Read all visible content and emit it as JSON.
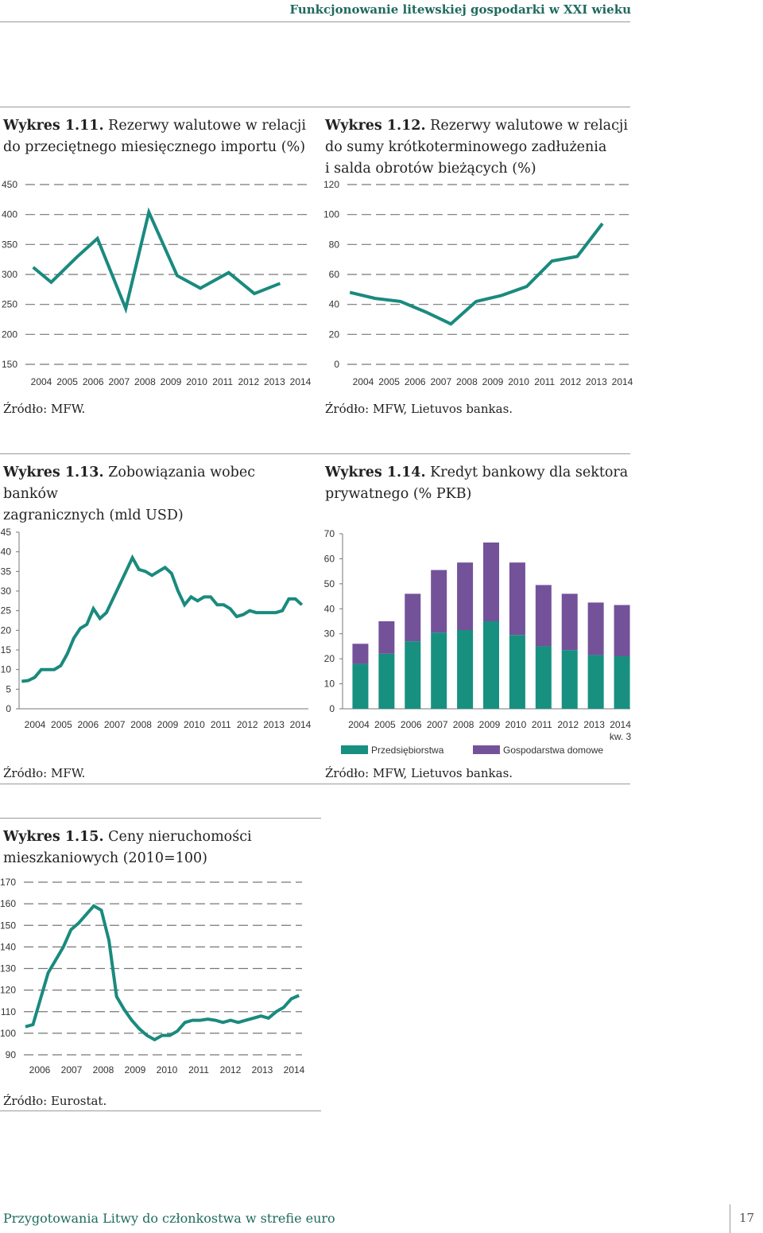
{
  "header": {
    "title": "Funkcjonowanie litewskiej gospodarki w XXI wieku"
  },
  "footer": {
    "left": "Przygotowania Litwy do członkostwa w strefie euro",
    "page_number": "17"
  },
  "charts": [
    {
      "num": "Wykres 1.11.",
      "title": "Rezerwy walutowe w relacji do przeciętnego miesięcznego importu (%)",
      "title_lines": [
        "Rezerwy walutowe w relacji",
        "do przeciętnego miesięcznego importu (%)"
      ],
      "source": "Źródło: MFW."
    },
    {
      "num": "Wykres 1.12.",
      "title": "Rezerwy walutowe w relacji do sumy krótkoterminowego zadłużenia i salda obrotów bieżących (%)",
      "title_lines": [
        "Rezerwy walutowe w relacji",
        "do sumy krótkoterminowego zadłużenia",
        "i salda obrotów bieżących (%)"
      ],
      "source": "Źródło: MFW, Lietuvos bankas."
    },
    {
      "num": "Wykres 1.13.",
      "title": "Zobowiązania wobec banków zagranicznych (mld USD)",
      "title_lines": [
        "Zobowiązania wobec banków",
        "zagranicznych (mld USD)"
      ],
      "source": "Źródło: MFW."
    },
    {
      "num": "Wykres 1.14.",
      "title": "Kredyt bankowy dla sektora prywatnego (% PKB)",
      "title_lines": [
        "Kredyt bankowy dla sektora",
        "prywatnego (% PKB)"
      ],
      "source": "Źródło: MFW, Lietuvos bankas."
    },
    {
      "num": "Wykres 1.15.",
      "title": "Ceny nieruchomości mieszkaniowych (2010=100)",
      "title_lines": [
        "Ceny nieruchomości",
        "mieszkaniowych (2010=100)"
      ],
      "source": "Źródło: Eurostat."
    }
  ],
  "chart_data": [
    {
      "type": "line",
      "title": "Rezerwy walutowe w relacji do przeciętnego miesięcznego importu (%)",
      "x": [
        2003.3,
        2004.0,
        2005.0,
        2005.8,
        2006.9,
        2007.8,
        2008.9,
        2009.8,
        2010.9,
        2011.9,
        2012.9
      ],
      "values": [
        312,
        287,
        329,
        360,
        243,
        404,
        298,
        277,
        303,
        268,
        285
      ],
      "ylim": [
        150,
        450
      ],
      "yticks": [
        150,
        200,
        250,
        300,
        350,
        400,
        450
      ],
      "xticks": [
        "2004",
        "2005",
        "2006",
        "2007",
        "2008",
        "2009",
        "2010",
        "2011",
        "2012",
        "2013",
        "2014"
      ],
      "line_color": "#1a8a7e"
    },
    {
      "type": "line",
      "title": "Rezerwy walutowe w relacji do sumy krótkoterminowego zadłużenia i salda obrotów bieżących (%)",
      "x": [
        2003.0,
        2004.0,
        2005.0,
        2006.0,
        2007.0,
        2008.0,
        2009.0,
        2010.0,
        2011.0,
        2012.0,
        2013.0
      ],
      "values": [
        48,
        44,
        42,
        35,
        27,
        42,
        46,
        52,
        69,
        72,
        94
      ],
      "ylim": [
        0,
        120
      ],
      "yticks": [
        0,
        20,
        40,
        60,
        80,
        100,
        120
      ],
      "xticks": [
        "2004",
        "2005",
        "2006",
        "2007",
        "2008",
        "2009",
        "2010",
        "2011",
        "2012",
        "2013",
        "2014"
      ],
      "line_color": "#1a8a7e"
    },
    {
      "type": "line",
      "title": "Zobowiązania wobec banków zagranicznych (mld USD)",
      "x": [
        2003.0,
        2003.25,
        2003.5,
        2003.75,
        2004.0,
        2004.25,
        2004.5,
        2004.75,
        2005.0,
        2005.25,
        2005.5,
        2005.75,
        2006.0,
        2006.25,
        2006.5,
        2006.75,
        2007.0,
        2007.25,
        2007.5,
        2007.75,
        2008.0,
        2008.25,
        2008.5,
        2008.75,
        2009.0,
        2009.25,
        2009.5,
        2009.75,
        2010.0,
        2010.25,
        2010.5,
        2010.75,
        2011.0,
        2011.25,
        2011.5,
        2011.75,
        2012.0,
        2012.25,
        2012.5,
        2012.75,
        2013.0,
        2013.25,
        2013.5,
        2013.75
      ],
      "values": [
        7,
        7.2,
        8,
        10,
        10,
        10,
        11,
        14,
        18,
        20.5,
        21.5,
        25.5,
        23,
        24.5,
        28,
        31.5,
        35,
        38.5,
        35.5,
        35,
        34,
        35,
        36,
        34.5,
        30,
        26.5,
        28.5,
        27.5,
        28.5,
        28.5,
        26.5,
        26.5,
        25.5,
        23.5,
        24,
        25,
        24.5,
        24.5,
        24.5,
        24.5,
        25,
        28,
        28,
        26.5
      ],
      "ylim": [
        0,
        45
      ],
      "yticks": [
        0,
        5,
        10,
        15,
        20,
        25,
        30,
        35,
        40,
        45
      ],
      "xticks": [
        "2004",
        "2005",
        "2006",
        "2007",
        "2008",
        "2009",
        "2010",
        "2011",
        "2012",
        "2013",
        "2014"
      ],
      "line_color": "#1a8a7e"
    },
    {
      "type": "bar",
      "stacked": true,
      "title": "Kredyt bankowy dla sektora prywatnego (% PKB)",
      "categories": [
        "2004",
        "2005",
        "2006",
        "2007",
        "2008",
        "2009",
        "2010",
        "2011",
        "2012",
        "2013",
        "2014"
      ],
      "last_category_note": "kw. 3",
      "series": [
        {
          "name": "Przedsiębiorstwa",
          "color": "#179080",
          "values": [
            18,
            22,
            27,
            30.5,
            31.5,
            35,
            29.5,
            25,
            23.5,
            21.5,
            21
          ]
        },
        {
          "name": "Gospodarstwa domowe",
          "color": "#74529a",
          "values": [
            8,
            13,
            19,
            25,
            27,
            31.5,
            29,
            24.5,
            22.5,
            21,
            20.5
          ]
        }
      ],
      "ylim": [
        0,
        70
      ],
      "yticks": [
        0,
        10,
        20,
        30,
        40,
        50,
        60,
        70
      ]
    },
    {
      "type": "line",
      "title": "Ceny nieruchomości mieszkaniowych (2010=100)",
      "x": [
        2005.0,
        2005.25,
        2005.5,
        2005.75,
        2006.0,
        2006.25,
        2006.5,
        2006.75,
        2007.0,
        2007.25,
        2007.5,
        2007.75,
        2008.0,
        2008.25,
        2008.5,
        2008.75,
        2009.0,
        2009.25,
        2009.5,
        2009.75,
        2010.0,
        2010.25,
        2010.5,
        2010.75,
        2011.0,
        2011.25,
        2011.5,
        2011.75,
        2012.0,
        2012.25,
        2012.5,
        2012.75,
        2013.0,
        2013.25,
        2013.5,
        2013.75,
        2014.0
      ],
      "values": [
        103,
        104,
        116,
        128,
        134,
        140,
        148,
        151,
        155,
        159,
        157,
        143,
        117,
        111,
        106,
        102,
        99,
        97,
        99,
        99,
        101,
        105,
        106,
        106,
        106.5,
        106,
        105,
        106,
        105,
        106,
        107,
        108,
        107,
        110,
        112,
        116,
        117.5
      ],
      "ylim": [
        90,
        170
      ],
      "yticks": [
        90,
        100,
        110,
        120,
        130,
        140,
        150,
        160,
        170
      ],
      "xticks": [
        "2006",
        "2007",
        "2008",
        "2009",
        "2010",
        "2011",
        "2012",
        "2013",
        "2014"
      ],
      "line_color": "#1a8a7e"
    }
  ]
}
